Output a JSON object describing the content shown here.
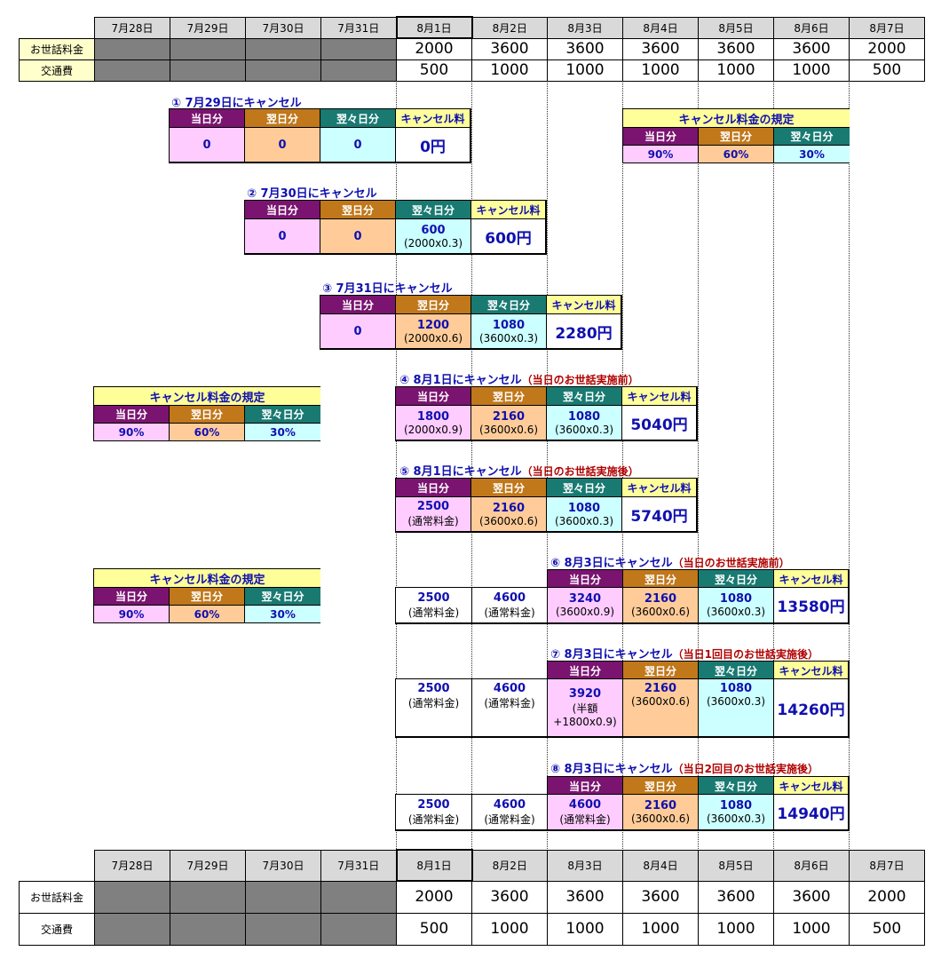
{
  "schedule": {
    "dates": [
      "7月28日",
      "7月29日",
      "7月30日",
      "7月31日",
      "8月1日",
      "8月2日",
      "8月3日",
      "8月4日",
      "8月5日",
      "8月6日",
      "8月7日"
    ],
    "care_label": "お世話料金",
    "transport_label": "交通費",
    "care_values": [
      "2000",
      "3600",
      "3600",
      "3600",
      "3600",
      "3600",
      "2000"
    ],
    "transport_values": [
      "500",
      "1000",
      "1000",
      "1000",
      "1000",
      "1000",
      "500"
    ]
  },
  "headers": {
    "same_day": "当日分",
    "next_day": "翌日分",
    "day_after": "翌々日分",
    "fee": "キャンセル料"
  },
  "rules": {
    "title": "キャンセル料金の規定",
    "same_day": "90%",
    "next_day": "60%",
    "day_after": "30%"
  },
  "cases": [
    {
      "title": "① 7月29日にキャンセル",
      "note": "",
      "same": "0",
      "same_sub": "",
      "next": "0",
      "next_sub": "",
      "after": "0",
      "after_sub": "",
      "fee": "0円"
    },
    {
      "title": "② 7月30日にキャンセル",
      "note": "",
      "same": "0",
      "same_sub": "",
      "next": "0",
      "next_sub": "",
      "after": "600",
      "after_sub": "(2000x0.3)",
      "fee": "600円"
    },
    {
      "title": "③ 7月31日にキャンセル",
      "note": "",
      "same": "0",
      "same_sub": "",
      "next": "1200",
      "next_sub": "(2000x0.6)",
      "after": "1080",
      "after_sub": "(3600x0.3)",
      "fee": "2280円"
    },
    {
      "title": "④ 8月1日にキャンセル",
      "note": "（当日のお世話実施前）",
      "same": "1800",
      "same_sub": "(2000x0.9)",
      "next": "2160",
      "next_sub": "(3600x0.6)",
      "after": "1080",
      "after_sub": "(3600x0.3)",
      "fee": "5040円"
    },
    {
      "title": "⑤ 8月1日にキャンセル",
      "note": "（当日のお世話実施後）",
      "same": "2500",
      "same_sub": "(通常料金)",
      "next": "2160",
      "next_sub": "(3600x0.6)",
      "after": "1080",
      "after_sub": "(3600x0.3)",
      "fee": "5740円"
    },
    {
      "title": "⑥ 8月3日にキャンセル",
      "note": "（当日のお世話実施前）",
      "pre1": "2500",
      "pre1_sub": "(通常料金)",
      "pre2": "4600",
      "pre2_sub": "(通常料金)",
      "same": "3240",
      "same_sub": "(3600x0.9)",
      "next": "2160",
      "next_sub": "(3600x0.6)",
      "after": "1080",
      "after_sub": "(3600x0.3)",
      "fee": "13580円"
    },
    {
      "title": "⑦ 8月3日にキャンセル",
      "note": "（当日1回目のお世話実施後）",
      "pre1": "2500",
      "pre1_sub": "(通常料金)",
      "pre2": "4600",
      "pre2_sub": "(通常料金)",
      "same": "3920",
      "same_sub": "(半額",
      "same_sub2": "+1800x0.9)",
      "next": "2160",
      "next_sub": "(3600x0.6)",
      "after": "1080",
      "after_sub": "(3600x0.3)",
      "fee": "14260円"
    },
    {
      "title": "⑧ 8月3日にキャンセル",
      "note": "（当日2回目のお世話実施後）",
      "pre1": "2500",
      "pre1_sub": "(通常料金)",
      "pre2": "4600",
      "pre2_sub": "(通常料金)",
      "same": "4600",
      "same_sub": "(通常料金)",
      "next": "2160",
      "next_sub": "(3600x0.6)",
      "after": "1080",
      "after_sub": "(3600x0.3)",
      "fee": "14940円"
    }
  ]
}
